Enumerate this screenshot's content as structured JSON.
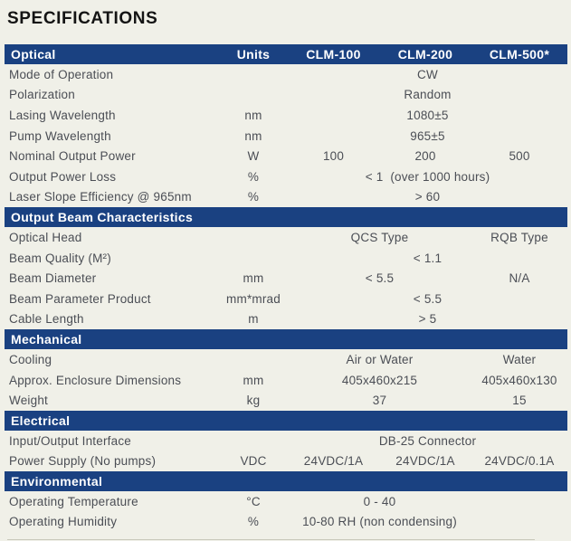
{
  "page": {
    "title": "SPECIFICATIONS",
    "colors": {
      "background": "#f0f0e8",
      "band_blue": "#1a4181",
      "band_text": "#ffffff",
      "body_text": "#4b4e55",
      "title_text": "#141414"
    }
  },
  "table": {
    "header_row": {
      "section_label": "Optical",
      "units_label": "Units",
      "columns": [
        "CLM-100",
        "CLM-200",
        "CLM-500*"
      ]
    },
    "sections": [
      {
        "title": "",
        "rows": [
          {
            "label": "Mode of Operation",
            "units": "",
            "layout": "span3",
            "values": [
              "CW"
            ]
          },
          {
            "label": "Polarization",
            "units": "",
            "layout": "span3",
            "values": [
              "Random"
            ]
          },
          {
            "label": "Lasing Wavelength",
            "units": "nm",
            "layout": "span3",
            "values": [
              "1080±5"
            ]
          },
          {
            "label": "Pump Wavelength",
            "units": "nm",
            "layout": "span3",
            "values": [
              "965±5"
            ]
          },
          {
            "label": "Nominal Output Power",
            "units": "W",
            "layout": "cols",
            "values": [
              "100",
              "200",
              "500"
            ]
          },
          {
            "label": "Output Power Loss",
            "units": "%",
            "layout": "span3",
            "values": [
              "< 1  (over 1000 hours)"
            ]
          },
          {
            "label": "Laser Slope Efficiency @ 965nm",
            "units": "%",
            "layout": "span3",
            "values": [
              "> 60"
            ]
          }
        ]
      },
      {
        "title": "Output Beam Characteristics",
        "rows": [
          {
            "label": "Optical Head",
            "units": "",
            "layout": "span2",
            "values": [
              "QCS Type",
              "RQB Type"
            ]
          },
          {
            "label": "Beam Quality (M²)",
            "units": "",
            "layout": "span3",
            "values": [
              "< 1.1"
            ]
          },
          {
            "label": "Beam Diameter",
            "units": "mm",
            "layout": "span2",
            "values": [
              "< 5.5",
              "N/A"
            ]
          },
          {
            "label": "Beam Parameter Product",
            "units": "mm*mrad",
            "layout": "span3",
            "values": [
              "< 5.5"
            ]
          },
          {
            "label": "Cable Length",
            "units": "m",
            "layout": "span3",
            "values": [
              "> 5"
            ]
          }
        ]
      },
      {
        "title": "Mechanical",
        "rows": [
          {
            "label": "Cooling",
            "units": "",
            "layout": "span2",
            "values": [
              "Air or Water",
              "Water"
            ]
          },
          {
            "label": "Approx. Enclosure Dimensions",
            "units": "mm",
            "layout": "span2",
            "values": [
              "405x460x215",
              "405x460x130"
            ]
          },
          {
            "label": "Weight",
            "units": "kg",
            "layout": "span2",
            "values": [
              "37",
              "15"
            ]
          }
        ]
      },
      {
        "title": "Electrical",
        "rows": [
          {
            "label": "Input/Output Interface",
            "units": "",
            "layout": "span3",
            "values": [
              "DB-25 Connector"
            ]
          },
          {
            "label": "Power Supply (No pumps)",
            "units": "VDC",
            "layout": "cols",
            "values": [
              "24VDC/1A",
              "24VDC/1A",
              "24VDC/0.1A"
            ]
          }
        ]
      },
      {
        "title": "Environmental",
        "rows": [
          {
            "label": "Operating Temperature",
            "units": "°C",
            "layout": "span2",
            "values": [
              "0 - 40",
              ""
            ]
          },
          {
            "label": "Operating Humidity",
            "units": "%",
            "layout": "span2",
            "values": [
              "10-80 RH (non condensing)",
              ""
            ]
          }
        ]
      }
    ]
  }
}
